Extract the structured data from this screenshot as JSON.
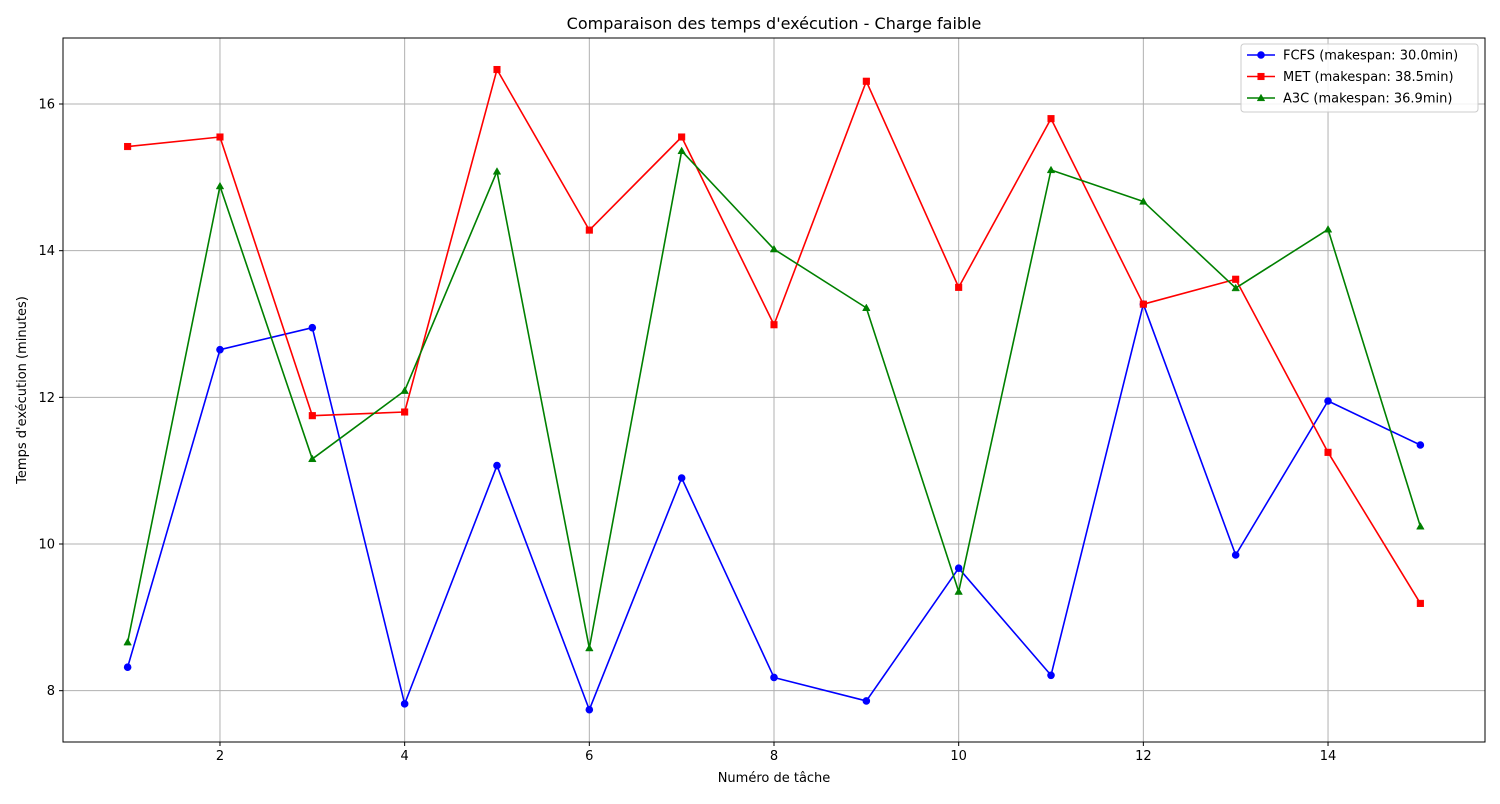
{
  "chart_data": {
    "type": "line",
    "title": "Comparaison des temps d'exécution - Charge faible",
    "xlabel": "Numéro de tâche",
    "ylabel": "Temps d'exécution (minutes)",
    "x": [
      1,
      2,
      3,
      4,
      5,
      6,
      7,
      8,
      9,
      10,
      11,
      12,
      13,
      14,
      15
    ],
    "xlim": [
      0.3,
      15.7
    ],
    "ylim": [
      7.3,
      16.9
    ],
    "xticks": [
      2,
      4,
      6,
      8,
      10,
      12,
      14
    ],
    "yticks": [
      8,
      10,
      12,
      14,
      16
    ],
    "grid": true,
    "legend_position": "top-right",
    "series": [
      {
        "name": "FCFS (makespan: 30.0min)",
        "color": "#0000ff",
        "marker": "circle",
        "values": [
          8.32,
          12.65,
          12.95,
          7.82,
          11.07,
          7.74,
          10.9,
          8.18,
          7.86,
          9.67,
          8.21,
          13.27,
          9.85,
          11.95,
          11.35
        ]
      },
      {
        "name": "MET (makespan: 38.5min)",
        "color": "#ff0000",
        "marker": "square",
        "values": [
          15.42,
          15.55,
          11.75,
          11.8,
          16.47,
          14.28,
          15.55,
          12.99,
          16.31,
          13.5,
          15.8,
          13.27,
          13.61,
          11.25,
          9.19
        ]
      },
      {
        "name": "A3C (makespan: 36.9min)",
        "color": "#008000",
        "marker": "triangle",
        "values": [
          8.66,
          14.88,
          11.16,
          12.09,
          15.08,
          8.58,
          15.36,
          14.02,
          13.22,
          9.35,
          15.1,
          14.67,
          13.49,
          14.29,
          10.24
        ]
      }
    ]
  }
}
